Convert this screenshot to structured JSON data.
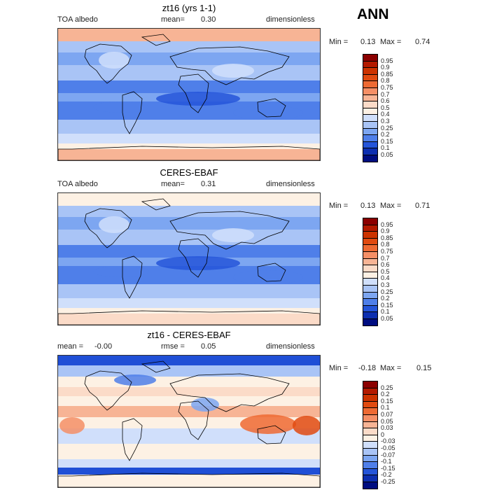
{
  "season": "ANN",
  "chart_data": [
    {
      "type": "heatmap",
      "title": "zt16 (yrs 1-1)",
      "variable": "TOA albedo",
      "mean_label": "mean=",
      "mean_value": "0.30",
      "units": "dimensionless",
      "min_label": "Min =",
      "min_value": "0.13",
      "max_label": "Max =",
      "max_value": "0.74",
      "colorbar_levels": [
        "0.95",
        "0.9",
        "0.85",
        "0.8",
        "0.75",
        "0.7",
        "0.6",
        "0.5",
        "0.4",
        "0.3",
        "0.25",
        "0.2",
        "0.15",
        "0.1",
        "0.05"
      ],
      "colorbar_colors": [
        "#8b0000",
        "#b31a00",
        "#cc3300",
        "#e04a10",
        "#ee6a33",
        "#f58f66",
        "#f7b495",
        "#fbdbc8",
        "#fdf1e4",
        "#d0dffb",
        "#a9c4f6",
        "#7da6f1",
        "#4f7fe9",
        "#2555d9",
        "#0d2fb0",
        "#000d80"
      ]
    },
    {
      "type": "heatmap",
      "title": "CERES-EBAF",
      "variable": "TOA albedo",
      "mean_label": "mean=",
      "mean_value": "0.31",
      "units": "dimensionless",
      "min_label": "Min =",
      "min_value": "0.13",
      "max_label": "Max =",
      "max_value": "0.71",
      "colorbar_levels": [
        "0.95",
        "0.9",
        "0.85",
        "0.8",
        "0.75",
        "0.7",
        "0.6",
        "0.5",
        "0.4",
        "0.3",
        "0.25",
        "0.2",
        "0.15",
        "0.1",
        "0.05"
      ],
      "colorbar_colors": [
        "#8b0000",
        "#b31a00",
        "#cc3300",
        "#e04a10",
        "#ee6a33",
        "#f58f66",
        "#f7b495",
        "#fbdbc8",
        "#fdf1e4",
        "#d0dffb",
        "#a9c4f6",
        "#7da6f1",
        "#4f7fe9",
        "#2555d9",
        "#0d2fb0",
        "#000d80"
      ]
    },
    {
      "type": "heatmap",
      "title": "zt16 - CERES-EBAF",
      "mean_label": "mean =",
      "mean_value": "-0.00",
      "rmse_label": "rmse =",
      "rmse_value": "0.05",
      "units": "dimensionless",
      "min_label": "Min =",
      "min_value": "-0.18",
      "max_label": "Max =",
      "max_value": "0.15",
      "colorbar_levels": [
        "0.25",
        "0.2",
        "0.15",
        "0.1",
        "0.07",
        "0.05",
        "0.03",
        "0",
        "-0.03",
        "-0.05",
        "-0.07",
        "-0.1",
        "-0.15",
        "-0.2",
        "-0.25"
      ],
      "colorbar_colors": [
        "#8b0000",
        "#b31a00",
        "#cc3300",
        "#e04a10",
        "#ee6a33",
        "#f58f66",
        "#f7b495",
        "#fbdbc8",
        "#fdf1e4",
        "#d0dffb",
        "#a9c4f6",
        "#7da6f1",
        "#4f7fe9",
        "#2555d9",
        "#0d2fb0",
        "#000d80"
      ]
    }
  ]
}
